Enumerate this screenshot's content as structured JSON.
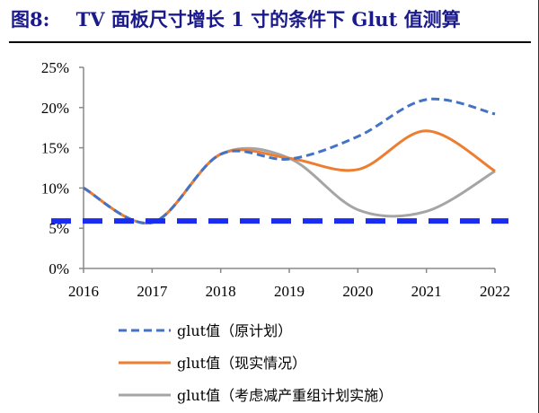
{
  "chart_data": {
    "type": "line",
    "title": "图8:    TV 面板尺寸增长 1 寸的条件下 Glut 值测算",
    "xlabel": "",
    "ylabel": "",
    "categories": [
      "2016",
      "2017",
      "2018",
      "2019",
      "2020",
      "2021",
      "2022"
    ],
    "ylim": [
      0,
      25
    ],
    "yticks": [
      "0%",
      "5%",
      "10%",
      "15%",
      "20%",
      "25%"
    ],
    "grid": false,
    "legend_position": "bottom",
    "series": [
      {
        "name": "glut值（原计划）",
        "color": "#4472c4",
        "style": "dashed",
        "values": [
          10.0,
          5.7,
          14.2,
          13.6,
          16.4,
          21.0,
          19.2
        ]
      },
      {
        "name": "glut值（现实情况）",
        "color": "#ed7d31",
        "style": "solid",
        "values": [
          10.0,
          5.7,
          14.2,
          13.7,
          12.3,
          17.1,
          12.1
        ]
      },
      {
        "name": "glut值（考虑减产重组计划实施）",
        "color": "#a5a5a5",
        "style": "solid",
        "values": [
          10.0,
          5.7,
          14.2,
          13.7,
          7.3,
          7.1,
          12.1
        ]
      }
    ],
    "reference_line": {
      "value": 5.9,
      "color": "#1a2cf0",
      "style": "dashed"
    }
  }
}
